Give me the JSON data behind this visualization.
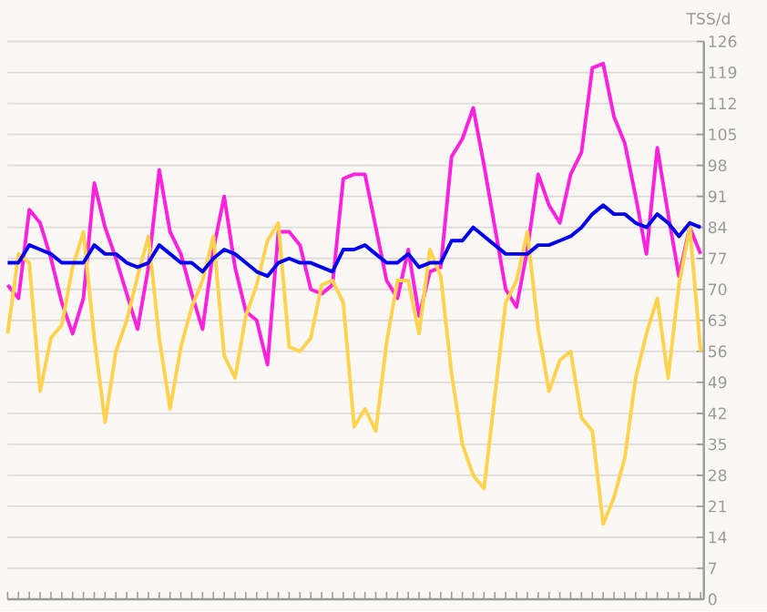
{
  "chart_data": {
    "type": "line",
    "ylabel": "TSS/d",
    "categories": [
      null,
      null,
      null,
      null,
      null,
      null,
      null,
      null,
      null,
      null,
      null,
      null,
      null,
      null,
      null,
      null,
      null,
      null,
      null,
      null,
      null,
      null,
      null,
      null,
      null,
      null,
      null,
      null,
      null,
      null,
      null,
      null,
      null,
      null,
      null,
      null,
      null,
      null,
      null,
      null,
      null,
      null,
      null,
      null,
      null,
      null,
      null,
      null,
      null,
      null,
      null,
      null,
      null,
      null,
      null,
      null,
      null,
      null,
      null,
      null,
      null,
      null,
      null,
      null,
      null
    ],
    "ylim": [
      0,
      126
    ],
    "yticks": [
      0,
      7,
      14,
      21,
      28,
      35,
      42,
      49,
      56,
      63,
      70,
      77,
      84,
      91,
      98,
      105,
      112,
      119,
      126
    ],
    "tick_labels": "y",
    "grid": "y",
    "marker": "none",
    "line_style": "solid",
    "series": [
      {
        "color": "#ff22dd",
        "values": [
          71,
          68,
          88,
          85,
          77,
          67,
          60,
          68,
          94,
          84,
          77,
          69,
          61,
          75,
          97,
          83,
          78,
          69,
          61,
          79,
          91,
          75,
          65,
          63,
          53,
          83,
          83,
          80,
          70,
          69,
          71,
          95,
          96,
          96,
          84,
          72,
          68,
          79,
          64,
          74,
          75,
          100,
          104,
          111,
          98,
          84,
          70,
          66,
          79,
          96,
          89,
          85,
          96,
          101,
          120,
          121,
          109,
          103,
          91,
          78,
          102,
          87,
          73,
          84,
          78
        ]
      },
      {
        "color": "#ffd24f",
        "values": [
          60,
          78,
          76,
          47,
          59,
          62,
          75,
          83,
          59,
          40,
          56,
          63,
          73,
          82,
          59,
          43,
          57,
          66,
          72,
          82,
          55,
          50,
          64,
          71,
          81,
          85,
          57,
          56,
          59,
          71,
          72,
          67,
          39,
          43,
          38,
          58,
          72,
          72,
          60,
          79,
          73,
          51,
          35,
          28,
          25,
          46,
          67,
          72,
          83,
          61,
          47,
          54,
          56,
          41,
          38,
          17,
          23,
          32,
          50,
          60,
          68,
          50,
          71,
          84,
          56
        ]
      },
      {
        "color": "#0000ee",
        "values": [
          76,
          76,
          80,
          79,
          78,
          76,
          76,
          76,
          80,
          78,
          78,
          76,
          75,
          76,
          80,
          78,
          76,
          76,
          74,
          77,
          79,
          78,
          76,
          74,
          73,
          76,
          77,
          76,
          76,
          75,
          74,
          79,
          79,
          80,
          78,
          76,
          76,
          78,
          75,
          76,
          76,
          81,
          81,
          84,
          82,
          80,
          78,
          78,
          78,
          80,
          80,
          81,
          82,
          84,
          87,
          89,
          87,
          87,
          85,
          84,
          87,
          85,
          82,
          85,
          84
        ]
      }
    ]
  }
}
